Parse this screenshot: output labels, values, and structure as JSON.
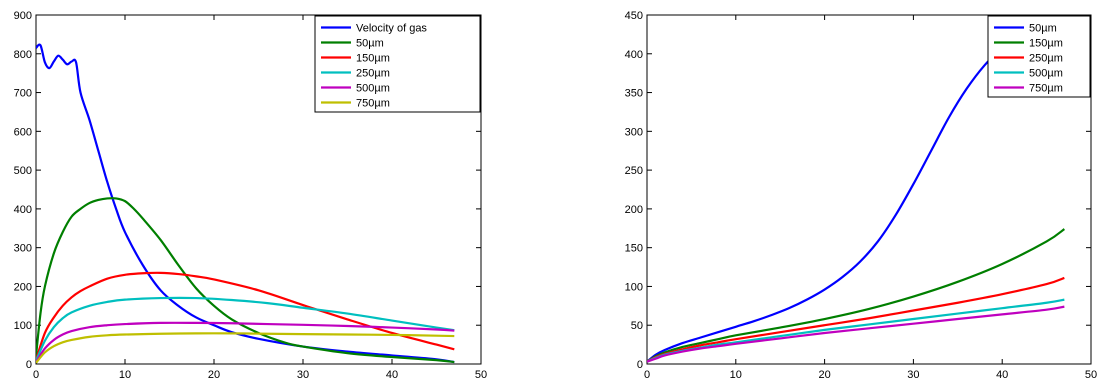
{
  "chart_data": [
    {
      "type": "line",
      "title": "",
      "xlabel": "",
      "ylabel": "",
      "xlim": [
        0,
        50
      ],
      "ylim": [
        0,
        900
      ],
      "xticks": [
        0,
        10,
        20,
        30,
        40,
        50
      ],
      "yticks": [
        0,
        100,
        200,
        300,
        400,
        500,
        600,
        700,
        800,
        900
      ],
      "grid": false,
      "legend_position": "top-right",
      "series": [
        {
          "name": "Velocity of gas",
          "color": "#0000ff",
          "x": [
            0,
            0.5,
            1,
            1.5,
            2,
            2.5,
            3,
            3.5,
            4,
            4.5,
            5,
            6,
            7,
            8,
            9,
            10,
            12,
            14,
            16,
            18,
            20,
            22,
            25,
            30,
            35,
            40,
            45,
            47
          ],
          "y": [
            815,
            822,
            778,
            763,
            780,
            795,
            785,
            773,
            780,
            778,
            700,
            630,
            550,
            470,
            400,
            340,
            255,
            190,
            150,
            120,
            100,
            82,
            65,
            45,
            32,
            22,
            12,
            5
          ]
        },
        {
          "name": "50µm",
          "color": "#007f00",
          "x": [
            0,
            0.5,
            1,
            2,
            3,
            4,
            5,
            6,
            7,
            8,
            9,
            10,
            11,
            12,
            14,
            16,
            18,
            20,
            22,
            25,
            28,
            30,
            35,
            40,
            45,
            47
          ],
          "y": [
            20,
            130,
            200,
            285,
            340,
            380,
            400,
            415,
            423,
            427,
            427,
            420,
            400,
            375,
            320,
            255,
            195,
            150,
            115,
            80,
            55,
            45,
            28,
            18,
            10,
            5
          ]
        },
        {
          "name": "150µm",
          "color": "#ff0000",
          "x": [
            0,
            1,
            2,
            3,
            4,
            5,
            6,
            8,
            10,
            12,
            14,
            16,
            18,
            20,
            25,
            30,
            35,
            40,
            45,
            47
          ],
          "y": [
            10,
            80,
            120,
            150,
            172,
            188,
            200,
            220,
            230,
            234,
            235,
            232,
            226,
            218,
            190,
            152,
            115,
            80,
            50,
            38
          ]
        },
        {
          "name": "250µm",
          "color": "#00bfbf",
          "x": [
            0,
            1,
            2,
            3,
            4,
            6,
            8,
            10,
            14,
            18,
            22,
            26,
            30,
            35,
            40,
            45,
            47
          ],
          "y": [
            8,
            60,
            95,
            118,
            133,
            150,
            160,
            166,
            170,
            170,
            165,
            157,
            145,
            130,
            112,
            94,
            87
          ]
        },
        {
          "name": "500µm",
          "color": "#bf00bf",
          "x": [
            0,
            1,
            2,
            3,
            4,
            6,
            8,
            10,
            14,
            18,
            22,
            26,
            30,
            35,
            40,
            45,
            47
          ],
          "y": [
            5,
            40,
            62,
            76,
            85,
            95,
            100,
            103,
            106,
            106,
            105,
            103,
            101,
            98,
            94,
            89,
            86
          ]
        },
        {
          "name": "750µm",
          "color": "#bfbf00",
          "x": [
            0,
            1,
            2,
            3,
            4,
            6,
            8,
            10,
            14,
            18,
            22,
            26,
            30,
            35,
            40,
            45,
            47
          ],
          "y": [
            3,
            30,
            46,
            56,
            62,
            70,
            74,
            76,
            78,
            79,
            79,
            78,
            77,
            76,
            75,
            73,
            72
          ]
        }
      ]
    },
    {
      "type": "line",
      "title": "",
      "xlabel": "",
      "ylabel": "",
      "xlim": [
        0,
        50
      ],
      "ylim": [
        0,
        450
      ],
      "xticks": [
        0,
        10,
        20,
        30,
        40,
        50
      ],
      "yticks": [
        0,
        50,
        100,
        150,
        200,
        250,
        300,
        350,
        400,
        450
      ],
      "grid": false,
      "legend_position": "top-right",
      "series": [
        {
          "name": "50µm",
          "color": "#0000ff",
          "x": [
            0,
            1,
            2,
            4,
            6,
            8,
            10,
            12,
            14,
            16,
            18,
            20,
            22,
            24,
            26,
            28,
            30,
            32,
            34,
            36,
            38,
            40
          ],
          "y": [
            3,
            12,
            18,
            27,
            34,
            41,
            48,
            55,
            63,
            72,
            83,
            96,
            112,
            132,
            158,
            192,
            232,
            275,
            318,
            355,
            385,
            408
          ]
        },
        {
          "name": "150µm",
          "color": "#007f00",
          "x": [
            0,
            1,
            2,
            4,
            6,
            8,
            10,
            15,
            20,
            25,
            30,
            35,
            40,
            45,
            47
          ],
          "y": [
            3,
            10,
            15,
            22,
            27,
            32,
            37,
            47,
            58,
            71,
            87,
            106,
            129,
            158,
            174
          ]
        },
        {
          "name": "250µm",
          "color": "#ff0000",
          "x": [
            0,
            1,
            2,
            4,
            6,
            8,
            10,
            15,
            20,
            25,
            30,
            35,
            40,
            45,
            47
          ],
          "y": [
            3,
            9,
            13,
            19,
            24,
            28,
            32,
            41,
            50,
            59,
            69,
            79,
            90,
            103,
            111
          ]
        },
        {
          "name": "500µm",
          "color": "#00bfbf",
          "x": [
            0,
            1,
            2,
            4,
            6,
            8,
            10,
            15,
            20,
            25,
            30,
            35,
            40,
            45,
            47
          ],
          "y": [
            3,
            8,
            12,
            17,
            21,
            25,
            28,
            36,
            44,
            51,
            58,
            65,
            72,
            79,
            83
          ]
        },
        {
          "name": "750µm",
          "color": "#bf00bf",
          "x": [
            0,
            1,
            2,
            4,
            6,
            8,
            10,
            15,
            20,
            25,
            30,
            35,
            40,
            45,
            47
          ],
          "y": [
            3,
            7,
            11,
            16,
            20,
            23,
            26,
            33,
            40,
            46,
            52,
            58,
            64,
            70,
            74
          ]
        }
      ]
    }
  ]
}
